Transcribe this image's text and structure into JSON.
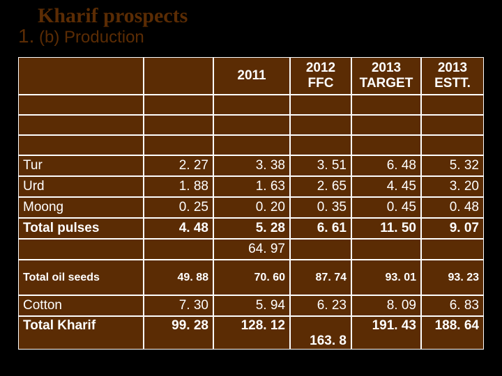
{
  "title": "Kharif prospects",
  "subtitle_num": "1.",
  "subtitle_text": " (b) Production",
  "colors": {
    "page_bg": "#000000",
    "cell_bg": "#5b2c04",
    "cell_border": "#ffffff",
    "text": "#ffffff",
    "title": "#5b2c04"
  },
  "columns": [
    {
      "label": "",
      "width": 180,
      "align": "left"
    },
    {
      "label": "",
      "width": 100,
      "align": "right"
    },
    {
      "label": "2011",
      "width": 110,
      "align": "right",
      "header_fontsize": 19
    },
    {
      "label": "2012\nFFC",
      "width": 88,
      "align": "right",
      "header_fontsize": 19
    },
    {
      "label": "2013\nTARGET",
      "width": 100,
      "align": "right",
      "header_fontsize": 14
    },
    {
      "label": "2013\nESTT.",
      "width": 90,
      "align": "right",
      "header_fontsize": 19
    }
  ],
  "rows": [
    {
      "kind": "empty"
    },
    {
      "kind": "empty"
    },
    {
      "kind": "empty"
    },
    {
      "kind": "data",
      "cells": [
        "Tur",
        "2. 27",
        "3. 38",
        "3. 51",
        "6. 48",
        "5. 32"
      ]
    },
    {
      "kind": "data",
      "cells": [
        "Urd",
        "1. 88",
        "1. 63",
        "2. 65",
        "4. 45",
        "3. 20"
      ]
    },
    {
      "kind": "data",
      "cells": [
        "Moong",
        "0. 25",
        "0. 20",
        "0. 35",
        "0. 45",
        "0. 48"
      ]
    },
    {
      "kind": "data",
      "bold": true,
      "cells": [
        "Total pulses",
        "4. 48",
        "5. 28",
        "6. 61",
        "11. 50",
        "9. 07"
      ]
    },
    {
      "kind": "data",
      "cells": [
        "",
        "",
        "64. 97",
        "",
        "",
        ""
      ]
    },
    {
      "kind": "tall",
      "bold": true,
      "cells": [
        "Total oil seeds",
        "49. 88",
        "70. 60",
        "87. 74",
        "93. 01",
        "93. 23"
      ]
    },
    {
      "kind": "data",
      "cells": [
        " Cotton",
        "7. 30",
        "5. 94",
        "6. 23",
        "8. 09",
        "6. 83"
      ]
    },
    {
      "kind": "last",
      "bold": true,
      "cells": [
        "Total Kharif",
        "99. 28",
        "128. 12",
        "163. 8",
        "191. 43",
        "188. 64"
      ],
      "extra_c4_line": ""
    }
  ]
}
